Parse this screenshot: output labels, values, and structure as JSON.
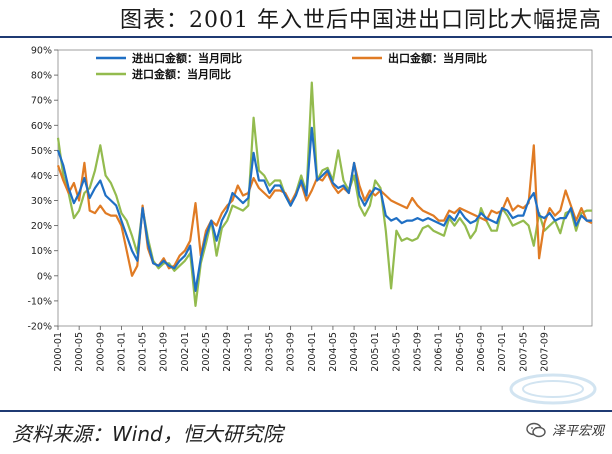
{
  "header": {
    "title": "图表：2001 年入世后中国进出口同比大幅提高"
  },
  "footer": {
    "source": "资料来源：Wind，恒大研究院",
    "brand": "泽平宏观",
    "watermark_icon": "watermark-logo-icon",
    "brand_icon": "wechat-icon"
  },
  "colors": {
    "total": "#1f6fc4",
    "export": "#e07b24",
    "import": "#93bb4e",
    "rule": "#1f3a73"
  },
  "chart_data": {
    "type": "line",
    "title": "",
    "ylim": [
      -20,
      90
    ],
    "yticks": [
      "90%",
      "80%",
      "70%",
      "60%",
      "50%",
      "40%",
      "30%",
      "20%",
      "10%",
      "0%",
      "-10%",
      "-20%"
    ],
    "xticks": [
      "2000-01",
      "2000-05",
      "2000-09",
      "2001-01",
      "2001-05",
      "2001-09",
      "2002-01",
      "2002-05",
      "2002-09",
      "2003-01",
      "2003-05",
      "2003-09",
      "2004-01",
      "2004-05",
      "2004-09",
      "2005-01",
      "2005-05",
      "2005-09",
      "2006-01",
      "2006-05",
      "2006-09",
      "2007-01",
      "2007-05",
      "2007-09"
    ],
    "legend": {
      "placement": "top"
    },
    "series": [
      {
        "name": "进出口金额：当月同比",
        "color": "#1f6fc4",
        "values": [
          50,
          44,
          35,
          29,
          33,
          39,
          31,
          35,
          38,
          32,
          30,
          28,
          22,
          16,
          10,
          6,
          27,
          13,
          5,
          4,
          6,
          4,
          3,
          6,
          8,
          12,
          -6,
          7,
          16,
          22,
          14,
          22,
          26,
          33,
          31,
          29,
          31,
          49,
          38,
          38,
          33,
          36,
          36,
          32,
          28,
          32,
          38,
          32,
          59,
          38,
          40,
          42,
          37,
          35,
          36,
          33,
          45,
          32,
          28,
          32,
          35,
          34,
          24,
          22,
          23,
          21,
          22,
          22,
          23,
          22,
          23,
          22,
          21,
          20,
          24,
          22,
          26,
          23,
          21,
          22,
          25,
          23,
          22,
          21,
          27,
          26,
          23,
          24,
          24,
          30,
          33,
          24,
          23,
          25,
          22,
          23,
          23,
          27,
          20,
          24,
          22,
          22
        ]
      },
      {
        "name": "出口金额：当月同比",
        "color": "#e07b24",
        "values": [
          44,
          38,
          33,
          37,
          30,
          45,
          26,
          25,
          28,
          25,
          24,
          24,
          20,
          10,
          0,
          4,
          28,
          11,
          5,
          4,
          7,
          3,
          4,
          8,
          10,
          14,
          29,
          8,
          18,
          22,
          20,
          25,
          28,
          30,
          36,
          32,
          33,
          39,
          35,
          33,
          31,
          34,
          34,
          33,
          29,
          33,
          37,
          30,
          34,
          39,
          38,
          41,
          36,
          33,
          35,
          33,
          45,
          36,
          30,
          34,
          32,
          34,
          32,
          30,
          29,
          28,
          27,
          31,
          28,
          26,
          25,
          24,
          22,
          22,
          26,
          25,
          27,
          26,
          25,
          24,
          23,
          22,
          26,
          25,
          26,
          31,
          26,
          28,
          27,
          29,
          52,
          7,
          21,
          27,
          24,
          26,
          34,
          28,
          22,
          27,
          22,
          21
        ]
      },
      {
        "name": "进口金额：当月同比",
        "color": "#93bb4e",
        "values": [
          55,
          40,
          33,
          23,
          26,
          33,
          35,
          42,
          52,
          40,
          37,
          32,
          25,
          22,
          16,
          9,
          27,
          15,
          6,
          3,
          5,
          5,
          2,
          4,
          6,
          9,
          -12,
          5,
          13,
          22,
          8,
          19,
          22,
          28,
          27,
          26,
          28,
          63,
          42,
          40,
          36,
          38,
          38,
          32,
          28,
          33,
          40,
          33,
          77,
          38,
          42,
          43,
          38,
          50,
          38,
          34,
          40,
          28,
          24,
          28,
          38,
          35,
          18,
          -5,
          18,
          14,
          15,
          14,
          15,
          19,
          20,
          18,
          17,
          16,
          23,
          20,
          23,
          20,
          15,
          18,
          27,
          22,
          18,
          18,
          27,
          24,
          20,
          21,
          22,
          20,
          12,
          25,
          18,
          20,
          22,
          17,
          25,
          26,
          18,
          25,
          26,
          26
        ]
      }
    ]
  }
}
